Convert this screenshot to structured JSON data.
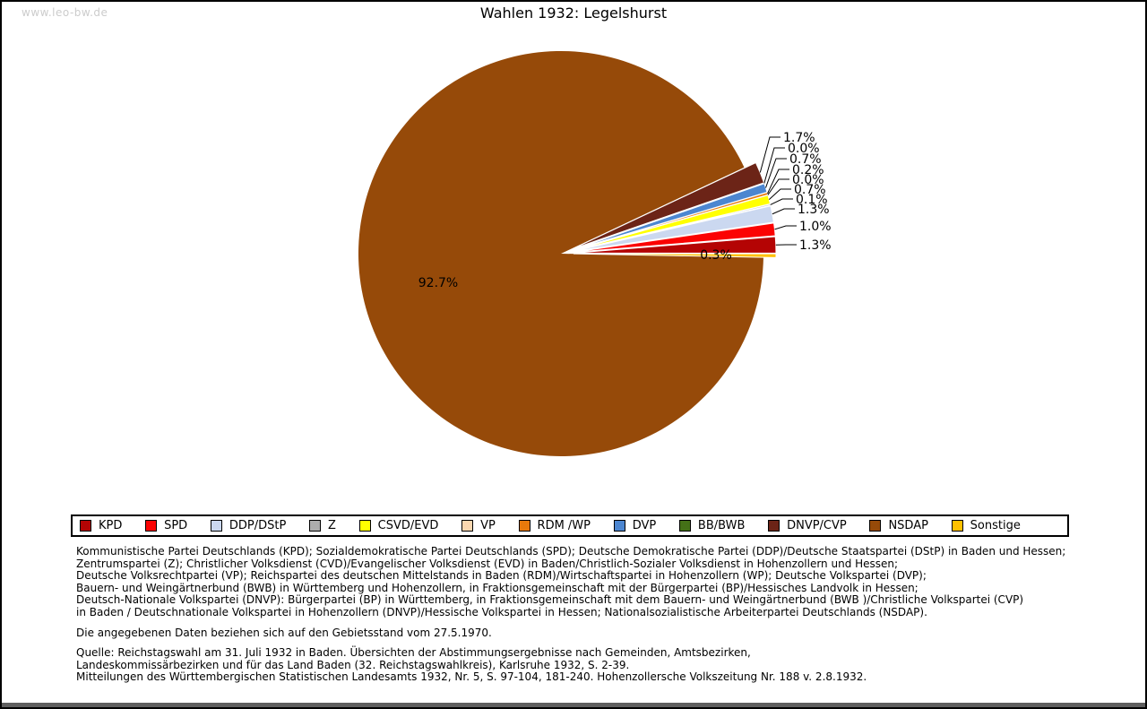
{
  "watermark": "www.leo-bw.de",
  "title": "Wahlen 1932: Legelshurst",
  "chart_data": {
    "type": "pie",
    "title": "Wahlen 1932: Legelshurst",
    "unit": "%",
    "start_angle_deg": 0,
    "direction": "counterclockwise",
    "legend_position": "bottom",
    "slices": [
      {
        "party": "KPD",
        "value": 1.3,
        "label": "1.3%",
        "color": "#b40404"
      },
      {
        "party": "SPD",
        "value": 1.0,
        "label": "1.0%",
        "color": "#fb0303"
      },
      {
        "party": "DDP/DStP",
        "value": 1.3,
        "label": "1.3%",
        "color": "#cbd8f0"
      },
      {
        "party": "Z",
        "value": 0.1,
        "label": "0.1%",
        "color": "#adadad"
      },
      {
        "party": "CSVD/EVD",
        "value": 0.7,
        "label": "0.7%",
        "color": "#ffff00"
      },
      {
        "party": "VP",
        "value": 0.0,
        "label": "0.0%",
        "color": "#fad7b0"
      },
      {
        "party": "RDM /WP",
        "value": 0.2,
        "label": "0.2%",
        "color": "#e8790b"
      },
      {
        "party": "DVP",
        "value": 0.7,
        "label": "0.7%",
        "color": "#4c86d0"
      },
      {
        "party": "BB/BWB",
        "value": 0.0,
        "label": "0.0%",
        "color": "#447117"
      },
      {
        "party": "DNVP/CVP",
        "value": 1.7,
        "label": "1.7%",
        "color": "#6c2417"
      },
      {
        "party": "NSDAP",
        "value": 92.7,
        "label": "92.7%",
        "color": "#964a09"
      },
      {
        "party": "Sonstige",
        "value": 0.3,
        "label": "0.3%",
        "color": "#ffc000"
      }
    ]
  },
  "notes": {
    "party_lines": [
      "Kommunistische Partei Deutschlands (KPD); Sozialdemokratische Partei Deutschlands (SPD); Deutsche Demokratische Partei (DDP)/Deutsche Staatspartei (DStP) in Baden und Hessen;",
      "Zentrumspartei (Z); Christlicher Volksdienst (CVD)/Evangelischer Volksdienst (EVD) in Baden/Christlich-Sozialer Volksdienst in Hohenzollern und Hessen;",
      "Deutsche Volksrechtpartei (VP); Reichspartei des deutschen Mittelstands in Baden (RDM)/Wirtschaftspartei in Hohenzollern (WP); Deutsche Volkspartei (DVP);",
      "Bauern- und Weingärtnerbund (BWB) in Württemberg und Hohenzollern, in Fraktionsgemeinschaft mit der Bürgerpartei (BP)/Hessisches Landvolk in Hessen;",
      "Deutsch-Nationale Volkspartei (DNVP): Bürgerpartei (BP) in Württemberg, in Fraktionsgemeinschaft mit dem Bauern- und Weingärtnerbund (BWB )/Christliche Volkspartei (CVP)",
      "in Baden / Deutschnationale Volkspartei in Hohenzollern (DNVP)/Hessische Volkspartei in Hessen; Nationalsozialistische Arbeiterpartei Deutschlands (NSDAP)."
    ],
    "gebietsstand": "Die angegebenen Daten beziehen sich auf den Gebietsstand vom 27.5.1970.",
    "quelle_lines": [
      "Quelle: Reichstagswahl am 31. Juli 1932 in Baden. Übersichten der Abstimmungsergebnisse nach Gemeinden, Amtsbezirken,",
      "Landeskommissärbezirken und für das Land Baden (32. Reichstagswahlkreis), Karlsruhe 1932, S. 2-39.",
      "Mitteilungen des Württembergischen Statistischen Landesamts 1932, Nr. 5, S. 97-104, 181-240. Hohenzollersche Volkszeitung Nr. 188 v. 2.8.1932."
    ]
  }
}
